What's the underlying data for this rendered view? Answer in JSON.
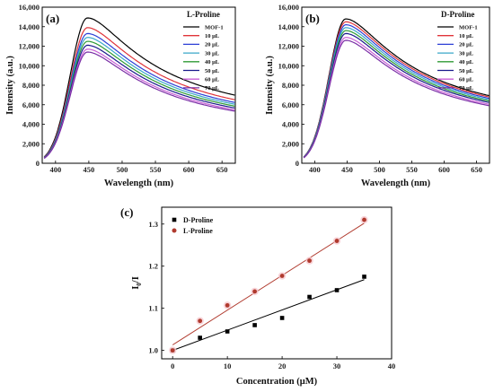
{
  "chart_data": [
    {
      "type": "line",
      "panel_label": "(a)",
      "legend_title": "L-Proline",
      "xlabel": "Wavelength (nm)",
      "ylabel": "Intensity (a.u.)",
      "xlim": [
        380,
        670
      ],
      "ylim": [
        0,
        16000
      ],
      "xticks": [
        400,
        450,
        500,
        550,
        600,
        650
      ],
      "yticks": [
        0,
        2000,
        4000,
        6000,
        8000,
        10000,
        12000,
        14000,
        16000
      ],
      "ytick_labels": [
        "0",
        "2,000",
        "4,000",
        "6,000",
        "8,000",
        "10,000",
        "12,000",
        "14,000",
        "16,000"
      ],
      "legend_position": "top-right",
      "series": [
        {
          "name": "MOF-1",
          "color": "#000000",
          "peak_x": 448,
          "peak_y": 14900
        },
        {
          "name": "10 μL",
          "color": "#e0343a",
          "peak_x": 448,
          "peak_y": 13900
        },
        {
          "name": "20 μL",
          "color": "#2c3fd6",
          "peak_x": 448,
          "peak_y": 13300
        },
        {
          "name": "30 μL",
          "color": "#3aa7c9",
          "peak_x": 448,
          "peak_y": 12900
        },
        {
          "name": "40 μL",
          "color": "#2e9a34",
          "peak_x": 448,
          "peak_y": 12500
        },
        {
          "name": "50 μL",
          "color": "#1a1a8c",
          "peak_x": 448,
          "peak_y": 12100
        },
        {
          "name": "60 μL",
          "color": "#c85fd6",
          "peak_x": 448,
          "peak_y": 11700
        },
        {
          "name": "70 μL",
          "color": "#7a2fa6",
          "peak_x": 448,
          "peak_y": 11400
        }
      ]
    },
    {
      "type": "line",
      "panel_label": "(b)",
      "legend_title": "D-Proline",
      "xlabel": "Wavelength (nm)",
      "ylabel": "Intensity (a.u.)",
      "xlim": [
        380,
        670
      ],
      "ylim": [
        0,
        16000
      ],
      "xticks": [
        400,
        450,
        500,
        550,
        600,
        650
      ],
      "yticks": [
        0,
        2000,
        4000,
        6000,
        8000,
        10000,
        12000,
        14000,
        16000
      ],
      "ytick_labels": [
        "0",
        "2,000",
        "4,000",
        "6,000",
        "8,000",
        "10,000",
        "12,000",
        "14,000",
        "16,000"
      ],
      "legend_position": "top-right",
      "series": [
        {
          "name": "MOF-1",
          "color": "#000000",
          "peak_x": 448,
          "peak_y": 14800
        },
        {
          "name": "10 μL",
          "color": "#e0343a",
          "peak_x": 448,
          "peak_y": 14500
        },
        {
          "name": "20 μL",
          "color": "#2c3fd6",
          "peak_x": 448,
          "peak_y": 14200
        },
        {
          "name": "30 μL",
          "color": "#3aa7c9",
          "peak_x": 448,
          "peak_y": 13900
        },
        {
          "name": "40 μL",
          "color": "#2e9a34",
          "peak_x": 448,
          "peak_y": 13600
        },
        {
          "name": "50 μL",
          "color": "#1a1a8c",
          "peak_x": 448,
          "peak_y": 13300
        },
        {
          "name": "60 μL",
          "color": "#c85fd6",
          "peak_x": 448,
          "peak_y": 12900
        },
        {
          "name": "70 μL",
          "color": "#7a2fa6",
          "peak_x": 448,
          "peak_y": 12600
        }
      ]
    },
    {
      "type": "scatter",
      "panel_label": "(c)",
      "xlabel": "Concentration (μM)",
      "ylabel_main": "I",
      "ylabel_sub": "0",
      "ylabel_tail": "/I",
      "xlim": [
        -2,
        40
      ],
      "ylim": [
        0.98,
        1.34
      ],
      "xticks": [
        0,
        10,
        20,
        30,
        40
      ],
      "yticks": [
        1.0,
        1.1,
        1.2,
        1.3
      ],
      "ytick_labels": [
        "1.0",
        "1.1",
        "1.2",
        "1.3"
      ],
      "legend_position": "top-left",
      "series": [
        {
          "name": "D-Proline",
          "color": "#000000",
          "marker": "square",
          "x": [
            0,
            5,
            10,
            15,
            20,
            25,
            30,
            35
          ],
          "y": [
            1.0,
            1.03,
            1.045,
            1.06,
            1.077,
            1.127,
            1.143,
            1.175
          ],
          "fit": [
            [
              0,
              1.0
            ],
            [
              35,
              1.168
            ]
          ]
        },
        {
          "name": "L-Proline",
          "color": "#b03a2e",
          "marker": "circle",
          "x": [
            0,
            5,
            10,
            15,
            20,
            25,
            30,
            35
          ],
          "y": [
            1.0,
            1.07,
            1.107,
            1.14,
            1.177,
            1.213,
            1.26,
            1.31
          ],
          "fit": [
            [
              0,
              1.013
            ],
            [
              35,
              1.302
            ]
          ]
        }
      ]
    }
  ]
}
